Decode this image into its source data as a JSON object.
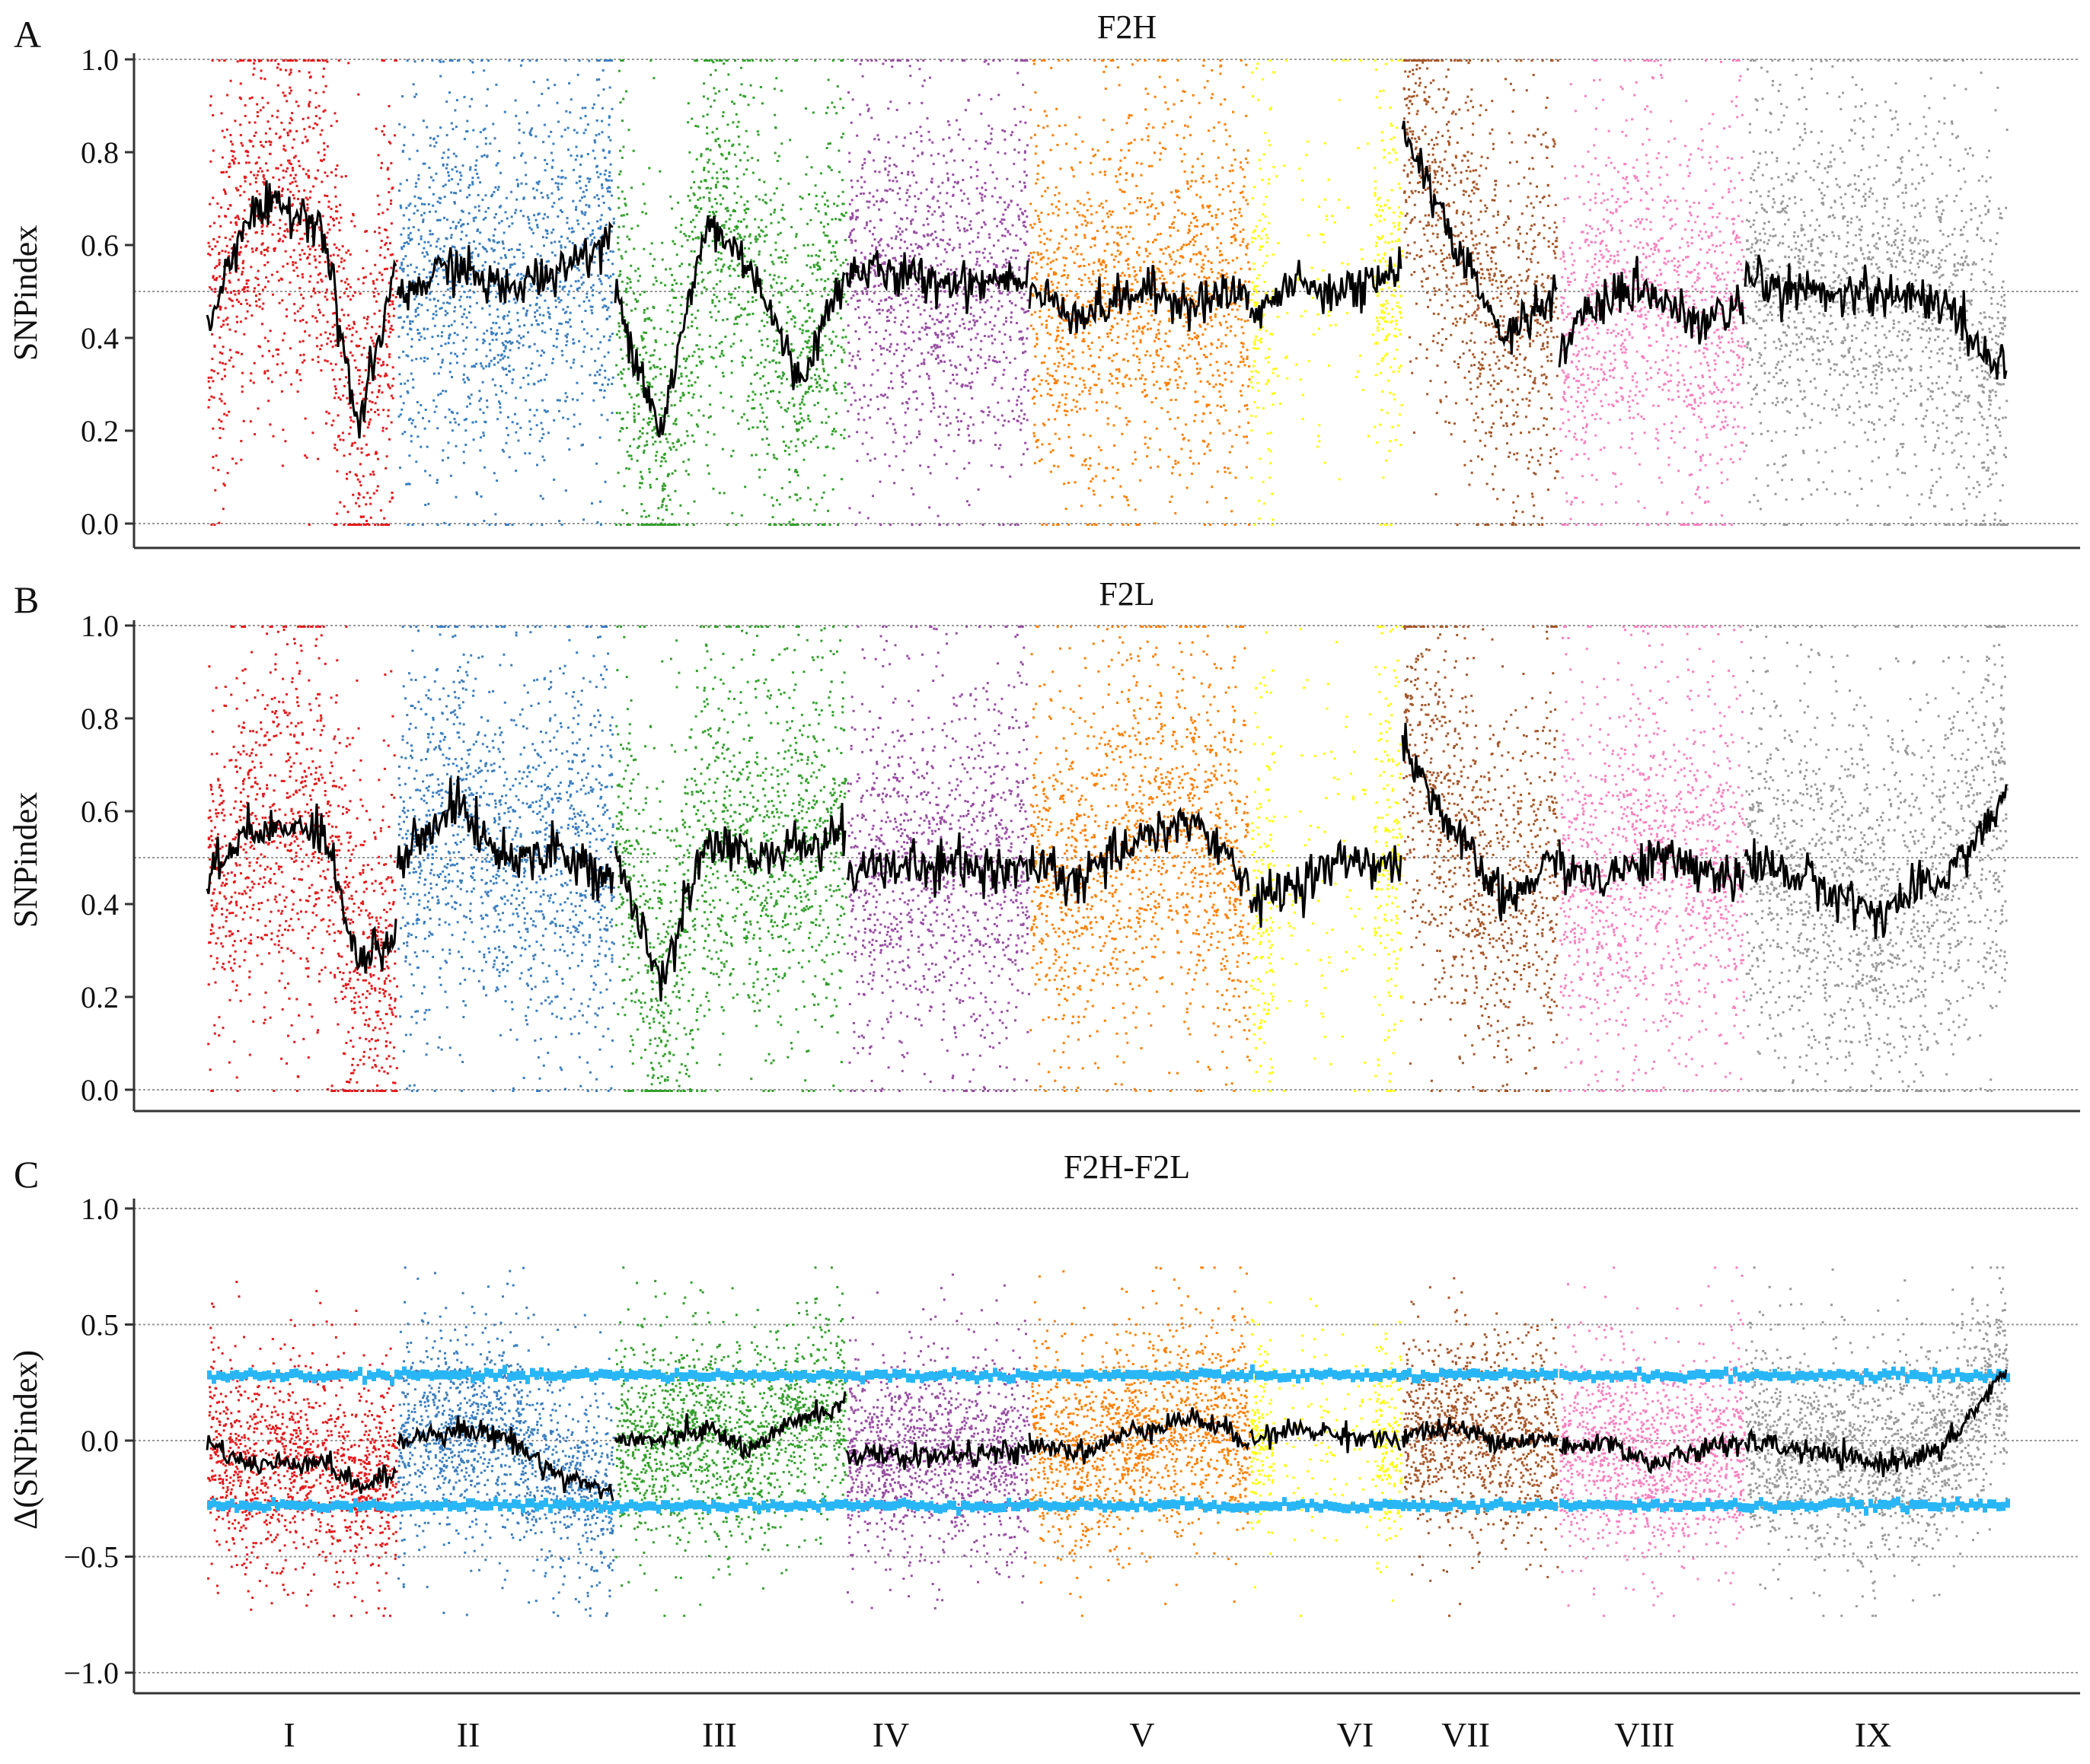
{
  "figure": {
    "chromosomes": [
      "I",
      "II",
      "III",
      "IV",
      "V",
      "VI",
      "VII",
      "VIII",
      "IX"
    ],
    "chromosome_colors": {
      "I": "#e31a1c",
      "II": "#3a7ebf",
      "III": "#33a02c",
      "IV": "#984ea3",
      "V": "#ff7f00",
      "VI": "#ffff00",
      "VII": "#a65628",
      "VIII": "#f781bf",
      "IX": "#999999"
    },
    "mean_line_color": "#000000",
    "threshold_color": "#29b6f6"
  },
  "chart_data": [
    {
      "panel_label": "A",
      "type": "scatter",
      "title": "F2H",
      "xlabel": "",
      "ylabel": "SNPindex",
      "ylim": [
        0.0,
        1.0
      ],
      "yticks": [
        "0.0",
        "0.2",
        "0.4",
        "0.6",
        "0.8",
        "1.0"
      ],
      "reference_lines": [
        0.0,
        0.5,
        1.0
      ],
      "series": [
        {
          "name": "I",
          "mean_trend": [
            0.42,
            0.66,
            0.68,
            0.66,
            0.2,
            0.55
          ]
        },
        {
          "name": "II",
          "mean_trend": [
            0.48,
            0.56,
            0.5,
            0.55,
            0.62
          ]
        },
        {
          "name": "III",
          "mean_trend": [
            0.5,
            0.2,
            0.65,
            0.55,
            0.3,
            0.55
          ]
        },
        {
          "name": "IV",
          "mean_trend": [
            0.55,
            0.53,
            0.52,
            0.54
          ]
        },
        {
          "name": "V",
          "mean_trend": [
            0.5,
            0.45,
            0.5,
            0.48,
            0.5
          ]
        },
        {
          "name": "VI",
          "mean_trend": [
            0.45,
            0.52,
            0.5,
            0.55
          ]
        },
        {
          "name": "VII",
          "mean_trend": [
            0.85,
            0.6,
            0.4,
            0.5
          ]
        },
        {
          "name": "VIII",
          "mean_trend": [
            0.38,
            0.48,
            0.5,
            0.42,
            0.48
          ]
        },
        {
          "name": "IX",
          "mean_trend": [
            0.52,
            0.5,
            0.5,
            0.48,
            0.32
          ]
        }
      ]
    },
    {
      "panel_label": "B",
      "type": "scatter",
      "title": "F2L",
      "xlabel": "",
      "ylabel": "SNPindex",
      "ylim": [
        0.0,
        1.0
      ],
      "yticks": [
        "0.0",
        "0.2",
        "0.4",
        "0.6",
        "0.8",
        "1.0"
      ],
      "reference_lines": [
        0.0,
        0.5,
        1.0
      ],
      "series": [
        {
          "name": "I",
          "mean_trend": [
            0.45,
            0.55,
            0.56,
            0.58,
            0.28,
            0.32
          ]
        },
        {
          "name": "II",
          "mean_trend": [
            0.48,
            0.62,
            0.5,
            0.52,
            0.45
          ]
        },
        {
          "name": "III",
          "mean_trend": [
            0.5,
            0.22,
            0.55,
            0.5,
            0.52,
            0.55
          ]
        },
        {
          "name": "IV",
          "mean_trend": [
            0.47,
            0.48,
            0.48,
            0.47
          ]
        },
        {
          "name": "V",
          "mean_trend": [
            0.48,
            0.45,
            0.55,
            0.58,
            0.45
          ]
        },
        {
          "name": "VI",
          "mean_trend": [
            0.4,
            0.45,
            0.5,
            0.48
          ]
        },
        {
          "name": "VII",
          "mean_trend": [
            0.75,
            0.55,
            0.4,
            0.5
          ]
        },
        {
          "name": "VIII",
          "mean_trend": [
            0.48,
            0.46,
            0.5,
            0.48,
            0.45
          ]
        },
        {
          "name": "IX",
          "mean_trend": [
            0.5,
            0.45,
            0.38,
            0.45,
            0.62
          ]
        }
      ]
    },
    {
      "panel_label": "C",
      "type": "scatter",
      "title": "F2H-F2L",
      "xlabel": "",
      "ylabel": "Δ(SNPindex)",
      "ylim": [
        -1.0,
        1.0
      ],
      "yticks": [
        "−1.0",
        "−0.5",
        "0.0",
        "0.5",
        "1.0"
      ],
      "reference_lines": [
        -1.0,
        -0.5,
        0.0,
        0.5,
        1.0
      ],
      "threshold_upper": 0.28,
      "threshold_lower": -0.28,
      "series": [
        {
          "name": "I",
          "mean_trend": [
            0.0,
            -0.1,
            -0.1,
            -0.08,
            -0.2,
            -0.15
          ]
        },
        {
          "name": "II",
          "mean_trend": [
            0.0,
            0.05,
            0.02,
            -0.15,
            -0.22
          ]
        },
        {
          "name": "III",
          "mean_trend": [
            0.0,
            0.0,
            0.05,
            -0.05,
            0.1,
            0.15
          ]
        },
        {
          "name": "IV",
          "mean_trend": [
            -0.06,
            -0.07,
            -0.06,
            -0.05
          ]
        },
        {
          "name": "V",
          "mean_trend": [
            0.0,
            -0.05,
            0.05,
            0.1,
            0.0
          ]
        },
        {
          "name": "VI",
          "mean_trend": [
            0.0,
            0.05,
            0.02,
            0.0
          ]
        },
        {
          "name": "VII",
          "mean_trend": [
            0.03,
            0.05,
            0.0,
            0.0
          ]
        },
        {
          "name": "VIII",
          "mean_trend": [
            -0.05,
            0.0,
            -0.1,
            -0.05,
            0.0
          ]
        },
        {
          "name": "IX",
          "mean_trend": [
            0.0,
            -0.05,
            -0.1,
            -0.05,
            0.3
          ]
        }
      ]
    }
  ]
}
